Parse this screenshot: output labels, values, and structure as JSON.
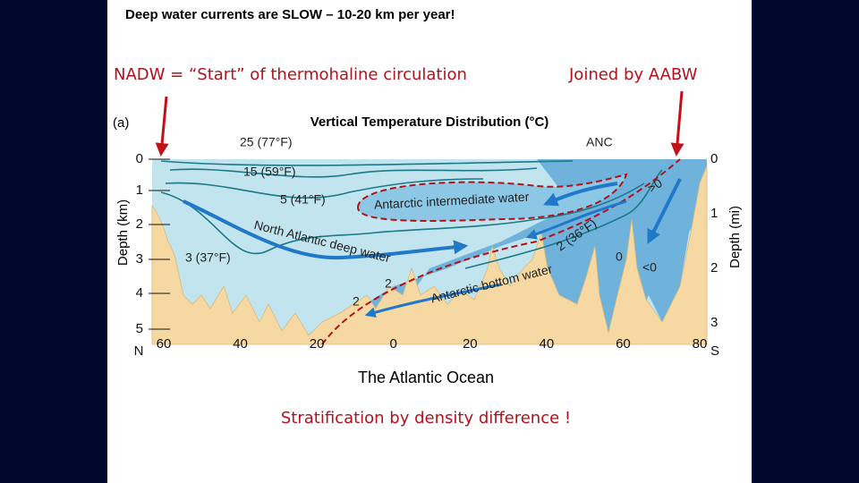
{
  "slide": {
    "title": "Deep water currents are SLOW – 10-20 km per year!",
    "annotations": [
      "NADW = “Start” of thermohaline circulation",
      "Joined by AABW"
    ],
    "figure": {
      "panel": "(a)",
      "title": "Vertical Temperature Distribution (°C)",
      "left_axis": {
        "label": "Depth (km)",
        "ticks": [
          "0",
          "1",
          "2",
          "3",
          "4",
          "5"
        ]
      },
      "right_axis": {
        "label": "Depth (mi)",
        "ticks": [
          "0",
          "1",
          "2",
          "3"
        ]
      },
      "x_axis": {
        "ticks": [
          "60",
          "40",
          "20",
          "0",
          "20",
          "40",
          "60",
          "80"
        ],
        "start": "N",
        "end": "S"
      },
      "labels": [
        "25 (77°F)",
        "15 (59°F)",
        "5 (41°F)",
        "3 (37°F)",
        "North Atlantic deep water",
        "Antarctic intermediate water",
        "2 (36°F)",
        "Antarctic bottom water",
        "ANC",
        ">0",
        "0",
        "<0",
        "2",
        "2"
      ]
    },
    "caption": "The Atlantic Ocean",
    "subcaption": "Stratification by density difference !"
  }
}
